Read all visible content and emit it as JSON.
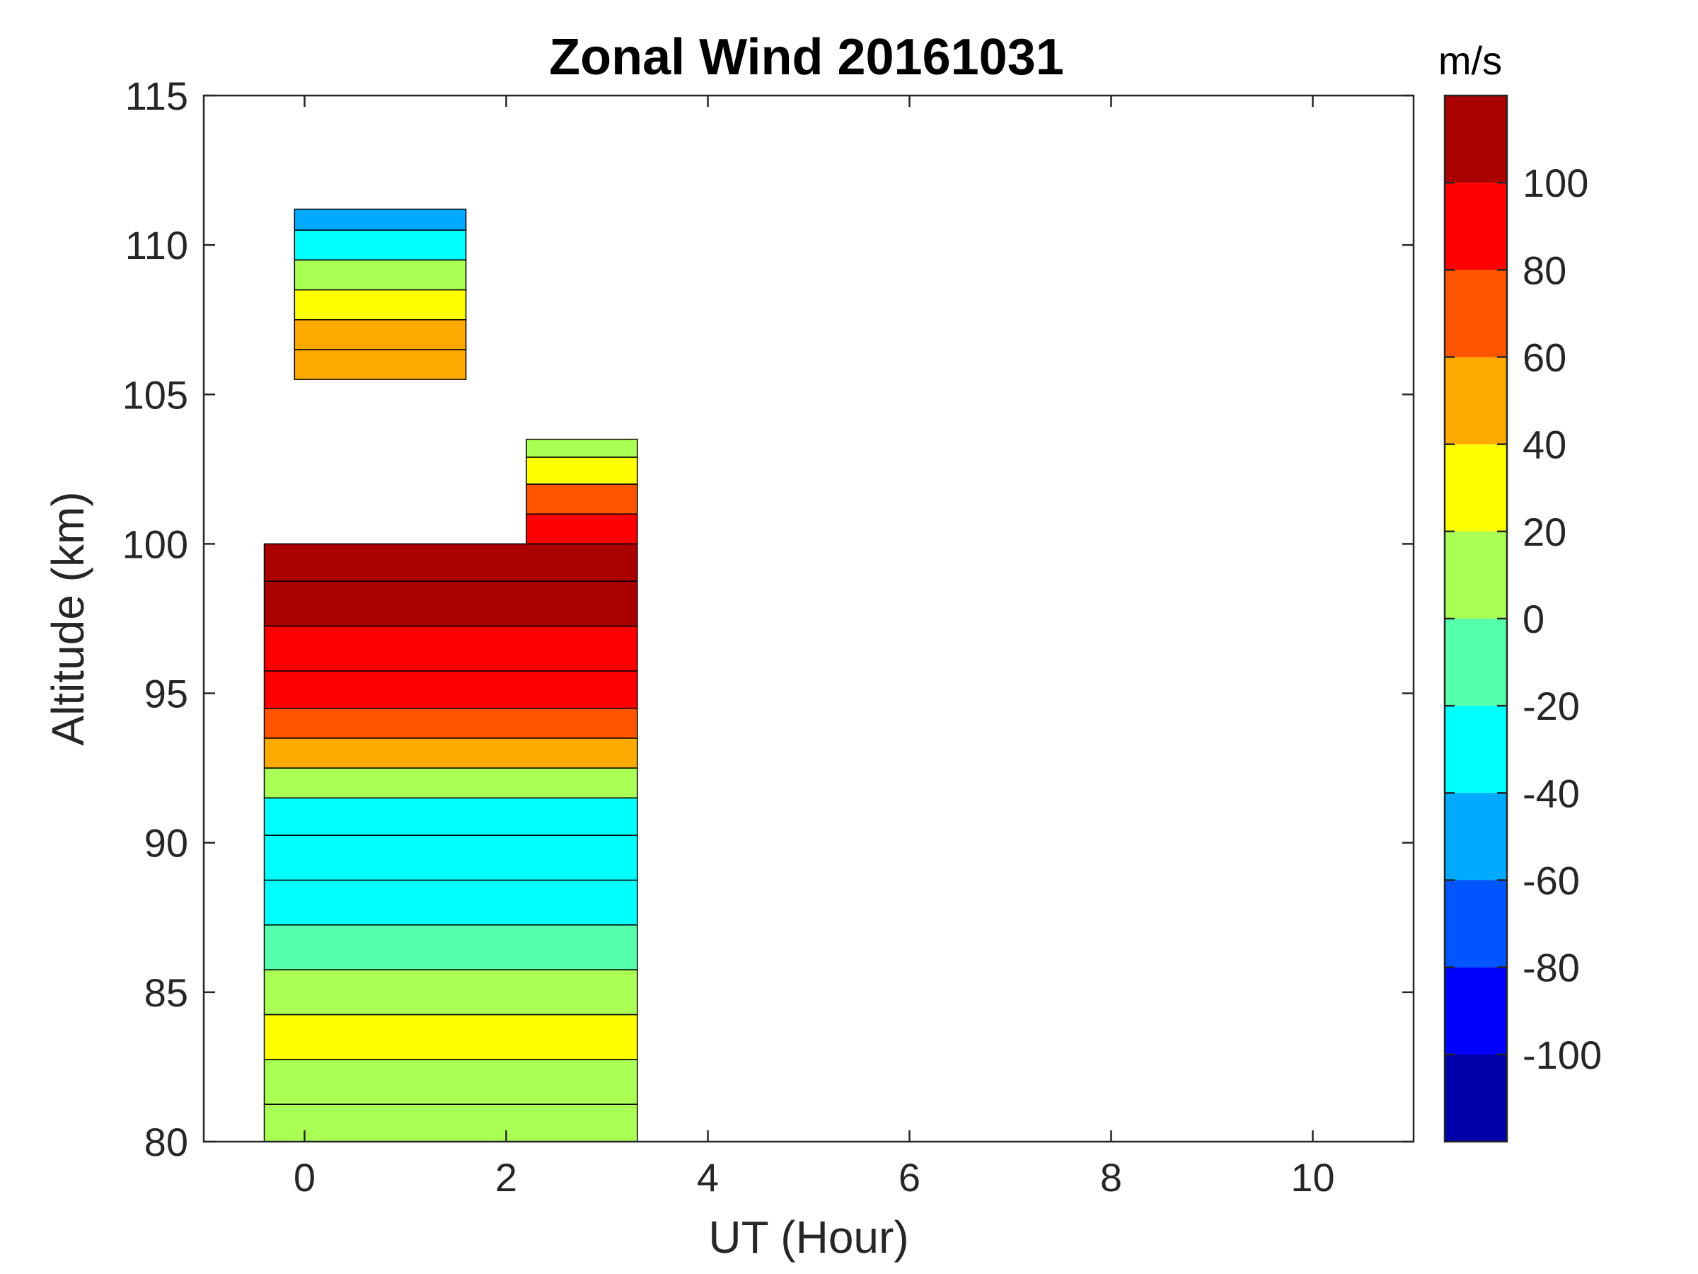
{
  "chart_data": {
    "type": "heatmap",
    "title": "Zonal Wind 20161031",
    "xlabel": "UT (Hour)",
    "ylabel": "Altitude (km)",
    "xlim": [
      -1,
      11
    ],
    "ylim": [
      80,
      115
    ],
    "xticks": [
      0,
      2,
      4,
      6,
      8,
      10
    ],
    "yticks": [
      80,
      85,
      90,
      95,
      100,
      105,
      110,
      115
    ],
    "grid": false,
    "colorbar": {
      "unit": "m/s",
      "range": [
        -120,
        120
      ],
      "ticks": [
        100,
        80,
        60,
        40,
        20,
        0,
        -20,
        -40,
        -60,
        -80,
        -100
      ],
      "bands": [
        {
          "from": 100,
          "to": 120,
          "color": "#aa0000"
        },
        {
          "from": 80,
          "to": 100,
          "color": "#ff0000"
        },
        {
          "from": 60,
          "to": 80,
          "color": "#ff5500"
        },
        {
          "from": 40,
          "to": 60,
          "color": "#ffaa00"
        },
        {
          "from": 20,
          "to": 40,
          "color": "#ffff00"
        },
        {
          "from": 0,
          "to": 20,
          "color": "#aaff55"
        },
        {
          "from": -20,
          "to": 0,
          "color": "#55ffaa"
        },
        {
          "from": -40,
          "to": -20,
          "color": "#00ffff"
        },
        {
          "from": -60,
          "to": -40,
          "color": "#00aaff"
        },
        {
          "from": -80,
          "to": -60,
          "color": "#0055ff"
        },
        {
          "from": -100,
          "to": -80,
          "color": "#0000ff"
        },
        {
          "from": -120,
          "to": -100,
          "color": "#0000aa"
        }
      ]
    },
    "regions": [
      {
        "t_start": -0.4,
        "t_end": 3.3,
        "alt_start": 80,
        "alt_end": 100,
        "profile": [
          {
            "alt": 80.5,
            "value": 10
          },
          {
            "alt": 82.0,
            "value": 15
          },
          {
            "alt": 83.5,
            "value": 20
          },
          {
            "alt": 85.0,
            "value": 10
          },
          {
            "alt": 86.5,
            "value": -10
          },
          {
            "alt": 88.0,
            "value": -30
          },
          {
            "alt": 89.5,
            "value": -35
          },
          {
            "alt": 91.0,
            "value": -30
          },
          {
            "alt": 92.0,
            "value": 10
          },
          {
            "alt": 93.0,
            "value": 50
          },
          {
            "alt": 94.0,
            "value": 70
          },
          {
            "alt": 95.0,
            "value": 85
          },
          {
            "alt": 96.5,
            "value": 90
          },
          {
            "alt": 98.0,
            "value": 105
          },
          {
            "alt": 99.5,
            "value": 110
          }
        ]
      },
      {
        "t_start": 2.2,
        "t_end": 3.3,
        "alt_start": 100,
        "alt_end": 103.5,
        "profile": [
          {
            "alt": 100.5,
            "value": 90
          },
          {
            "alt": 101.5,
            "value": 60
          },
          {
            "alt": 102.5,
            "value": 30
          },
          {
            "alt": 103.3,
            "value": 10
          }
        ]
      },
      {
        "t_start": -0.1,
        "t_end": 1.6,
        "alt_start": 105.5,
        "alt_end": 111.2,
        "profile": [
          {
            "alt": 106.0,
            "value": 50
          },
          {
            "alt": 107.0,
            "value": 45
          },
          {
            "alt": 108.0,
            "value": 30
          },
          {
            "alt": 109.0,
            "value": 0
          },
          {
            "alt": 110.0,
            "value": -40
          },
          {
            "alt": 111.0,
            "value": -60
          }
        ]
      }
    ]
  }
}
